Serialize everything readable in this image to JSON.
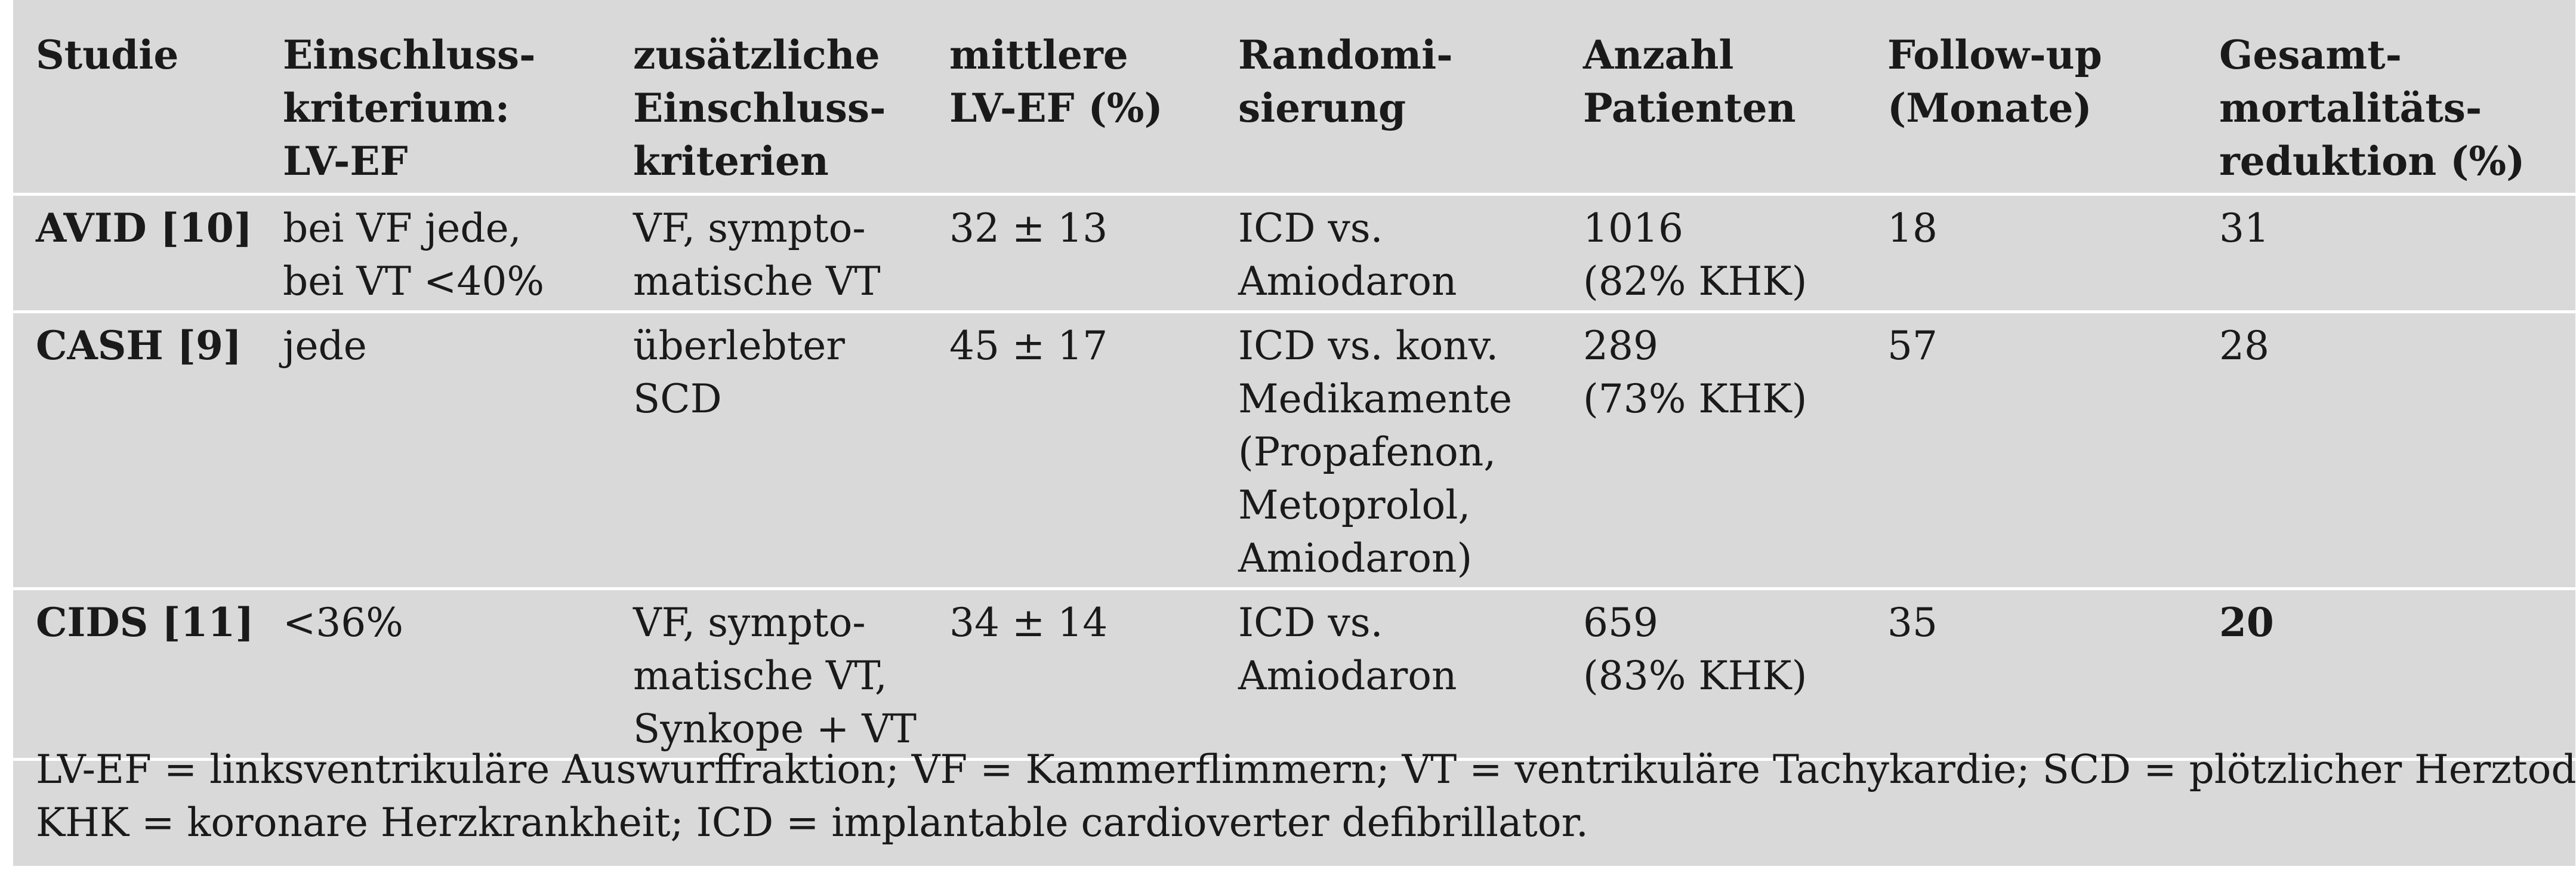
{
  "table": {
    "headers": [
      [
        "Studie"
      ],
      [
        "Einschluss-",
        "kriterium:",
        "LV-EF"
      ],
      [
        "zusätzliche",
        "Einschluss-",
        "kriterien"
      ],
      [
        "mittlere",
        "LV-EF (%)"
      ],
      [
        "Randomi-",
        "sierung"
      ],
      [
        "Anzahl",
        "Patienten"
      ],
      [
        "Follow-up",
        "(Monate)"
      ],
      [
        "Gesamt-",
        "mortalitäts-",
        "reduktion (%)"
      ]
    ],
    "rows": [
      {
        "cells": [
          [
            "AVID [10]"
          ],
          [
            "bei VF jede,",
            "bei VT <40%"
          ],
          [
            "VF, sympto-",
            "matische VT"
          ],
          [
            "32 ± 13"
          ],
          [
            "ICD vs.",
            "Amiodaron"
          ],
          [
            "1016",
            "(82% KHK)"
          ],
          [
            "18"
          ],
          [
            "31"
          ]
        ]
      },
      {
        "cells": [
          [
            "CASH [9]"
          ],
          [
            "jede"
          ],
          [
            "überlebter",
            "SCD"
          ],
          [
            "45 ± 17"
          ],
          [
            "ICD vs. konv.",
            "Medikamente",
            "(Propafenon,",
            "Metoprolol,",
            "Amiodaron)"
          ],
          [
            "289",
            "(73% KHK)"
          ],
          [
            "57"
          ],
          [
            "28"
          ]
        ]
      },
      {
        "cells": [
          [
            "CIDS [11]"
          ],
          [
            "<36%"
          ],
          [
            "VF, sympto-",
            "matische VT,",
            "Synkope + VT"
          ],
          [
            "34 ± 14"
          ],
          [
            "ICD vs.",
            "Amiodaron"
          ],
          [
            "659",
            "(83% KHK)"
          ],
          [
            "35"
          ],
          [
            "20"
          ]
        ]
      }
    ]
  },
  "footnote": [
    "LV-EF = linksventrikuläre Auswurffraktion; VF = Kammerflimmern; VT = ventrikuläre Tachykardie; SCD = plötzlicher Herztod;",
    "KHK = koronare Herzkrankheit; ICD = implantable cardioverter defibrillator."
  ]
}
